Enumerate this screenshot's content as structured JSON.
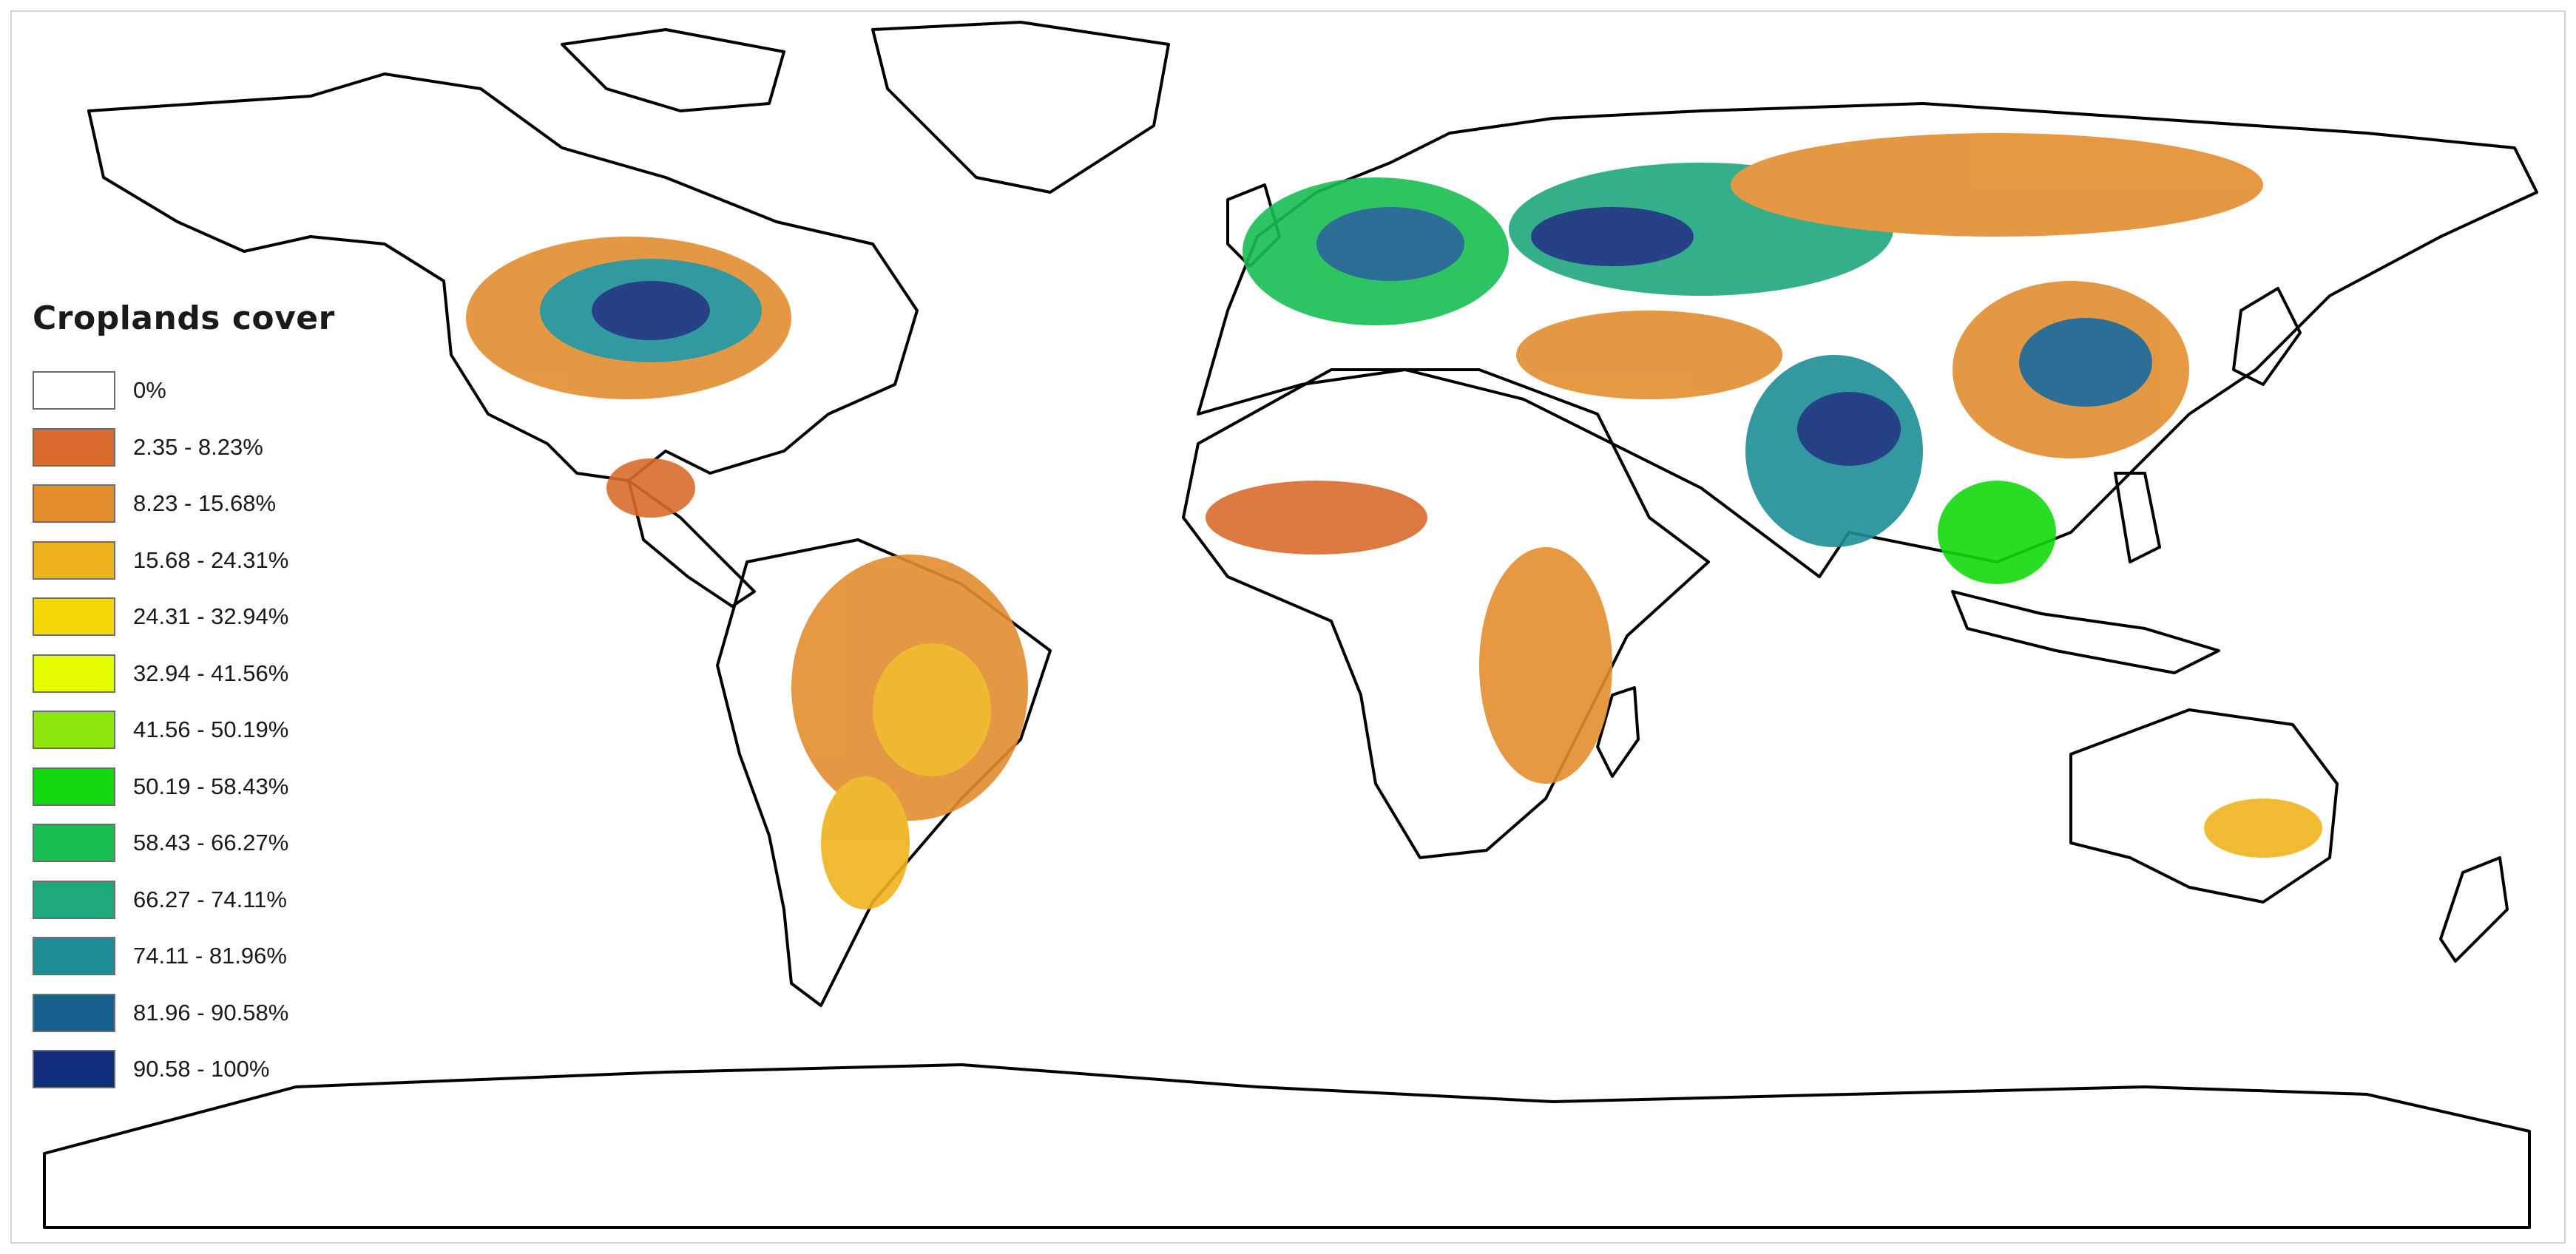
{
  "legend": {
    "title": "Croplands cover",
    "items": [
      {
        "label": "0%",
        "color": "#ffffff"
      },
      {
        "label": "2.35 - 8.23%",
        "color": "#d96b2e"
      },
      {
        "label": "8.23 - 15.68%",
        "color": "#e38d2f"
      },
      {
        "label": "15.68 - 24.31%",
        "color": "#efb21c"
      },
      {
        "label": "24.31 - 32.94%",
        "color": "#f5d80b"
      },
      {
        "label": "32.94 - 41.56%",
        "color": "#e6ff00"
      },
      {
        "label": "41.56 - 50.19%",
        "color": "#8ee60a"
      },
      {
        "label": "50.19 - 58.43%",
        "color": "#12d90d"
      },
      {
        "label": "58.43 - 66.27%",
        "color": "#18be52"
      },
      {
        "label": "66.27 - 74.11%",
        "color": "#1fa77e"
      },
      {
        "label": "74.11 - 81.96%",
        "color": "#1e8e96"
      },
      {
        "label": "81.96 - 90.58%",
        "color": "#175f8c"
      },
      {
        "label": "90.58 - 100%",
        "color": "#0f2d7a"
      }
    ]
  },
  "map": {
    "outline_color": "#000000",
    "background_color": "#ffffff"
  }
}
